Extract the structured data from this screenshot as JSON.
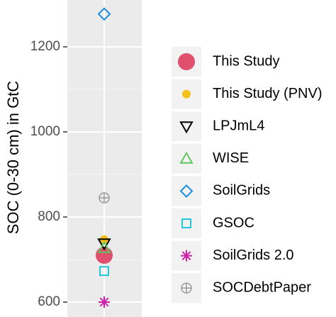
{
  "chart_data": {
    "type": "scatter",
    "y_label": "SOC (0-30 cm) in GtC",
    "ylim": [
      565,
      1310
    ],
    "yticks": [
      600,
      800,
      1000,
      1200
    ],
    "yticks_minor": [
      700,
      900,
      1100
    ],
    "grid": true,
    "series": [
      {
        "name": "This Study",
        "color": "#e0506e",
        "marker": "circle-large",
        "values": [
          710
        ]
      },
      {
        "name": "This Study (PNV)",
        "color": "#f5c01a",
        "marker": "circle",
        "values": [
          747
        ]
      },
      {
        "name": "LPJmL4",
        "color": "#000000",
        "marker": "triangle-down",
        "values": [
          738
        ]
      },
      {
        "name": "WISE",
        "color": "#5cc85c",
        "marker": "triangle-up",
        "values": [
          727
        ]
      },
      {
        "name": "SoilGrids",
        "color": "#1c8ee0",
        "marker": "diamond",
        "values": [
          1277
        ]
      },
      {
        "name": "GSOC",
        "color": "#22c6d8",
        "marker": "square",
        "values": [
          673
        ]
      },
      {
        "name": "SoilGrids 2.0",
        "color": "#cc22aa",
        "marker": "asterisk",
        "values": [
          600
        ]
      },
      {
        "name": "SOCDebtPaper",
        "color": "#9a9a9a",
        "marker": "circle-plus",
        "values": [
          845
        ]
      }
    ]
  }
}
